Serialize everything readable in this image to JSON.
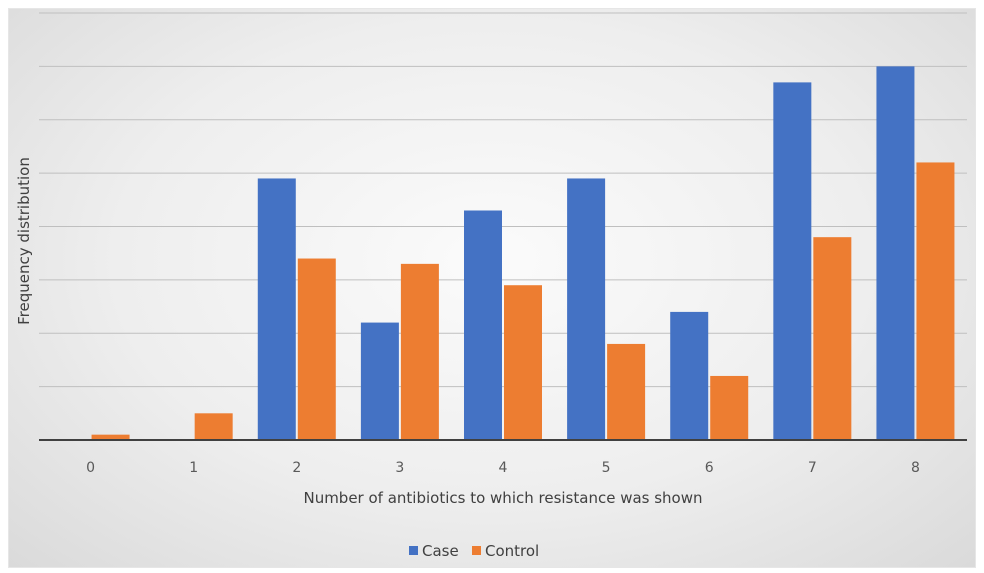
{
  "chart_data": {
    "type": "bar",
    "title": "",
    "xlabel": "Number of antibiotics to which resistance was shown",
    "ylabel": "Frequency distribution",
    "categories": [
      "0",
      "1",
      "2",
      "3",
      "4",
      "5",
      "6",
      "7",
      "8"
    ],
    "series": [
      {
        "name": "Case",
        "color": "#4472C4",
        "values": [
          0,
          0,
          4.9,
          2.2,
          4.3,
          4.9,
          2.4,
          6.7,
          7.0
        ]
      },
      {
        "name": "Control",
        "color": "#ED7D31",
        "values": [
          0.1,
          0.5,
          3.4,
          3.3,
          2.9,
          1.8,
          1.2,
          3.8,
          5.2
        ]
      }
    ],
    "ylim": [
      0,
      8
    ],
    "y_tick_labels_shown": false,
    "grid": true,
    "legend_position": "bottom"
  }
}
